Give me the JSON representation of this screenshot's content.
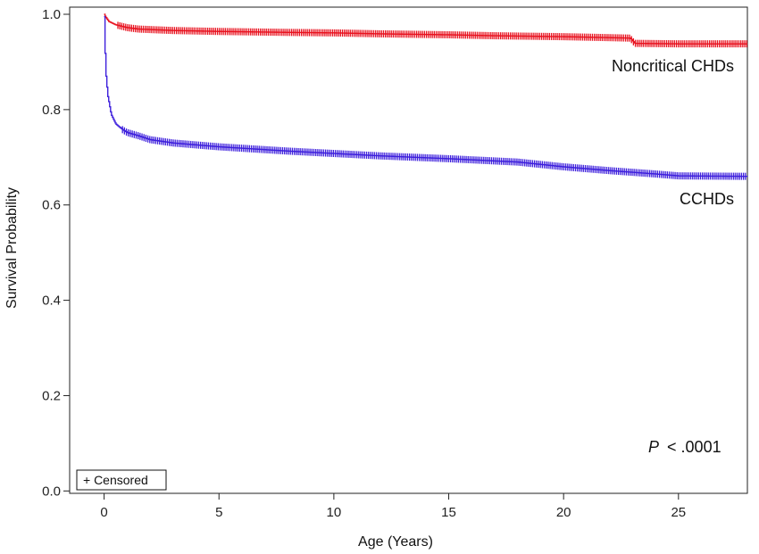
{
  "chart_data": {
    "type": "line",
    "title": "",
    "xlabel": "Age (Years)",
    "ylabel": "Survival Probability",
    "xlim": [
      -1.5,
      28
    ],
    "ylim": [
      -0.005,
      1.015
    ],
    "xticks": [
      0,
      5,
      10,
      15,
      20,
      25
    ],
    "yticks": [
      0.0,
      0.2,
      0.4,
      0.6,
      0.8,
      1.0
    ],
    "ytick_labels": [
      "0.0",
      "0.2",
      "0.4",
      "0.6",
      "0.8",
      "1.0"
    ],
    "grid": false,
    "legend": {
      "placement": "bottom-left",
      "label": "+ Censored"
    },
    "annotation": {
      "p_symbol": "P",
      "p_text": "< .0001"
    },
    "series": [
      {
        "name": "Noncritical CHDs",
        "color": "#e8121f",
        "x": [
          0,
          0.05,
          0.2,
          0.5,
          1,
          1.5,
          2,
          3,
          5,
          8,
          10,
          12,
          15,
          17,
          20,
          22,
          22.9,
          23.1,
          25,
          28
        ],
        "y": [
          1.0,
          0.995,
          0.985,
          0.978,
          0.972,
          0.969,
          0.968,
          0.966,
          0.964,
          0.962,
          0.961,
          0.959,
          0.957,
          0.955,
          0.953,
          0.951,
          0.95,
          0.939,
          0.938,
          0.938
        ]
      },
      {
        "name": "CCHDs",
        "color": "#3d1fdc",
        "x": [
          0,
          0.03,
          0.08,
          0.15,
          0.3,
          0.5,
          0.8,
          1,
          1.5,
          2,
          3,
          5,
          8,
          10,
          12,
          15,
          18,
          20,
          22,
          24,
          25,
          28
        ],
        "y": [
          0.995,
          0.93,
          0.87,
          0.83,
          0.79,
          0.77,
          0.758,
          0.752,
          0.745,
          0.737,
          0.73,
          0.722,
          0.713,
          0.708,
          0.703,
          0.697,
          0.69,
          0.68,
          0.672,
          0.665,
          0.661,
          0.66
        ]
      }
    ]
  }
}
